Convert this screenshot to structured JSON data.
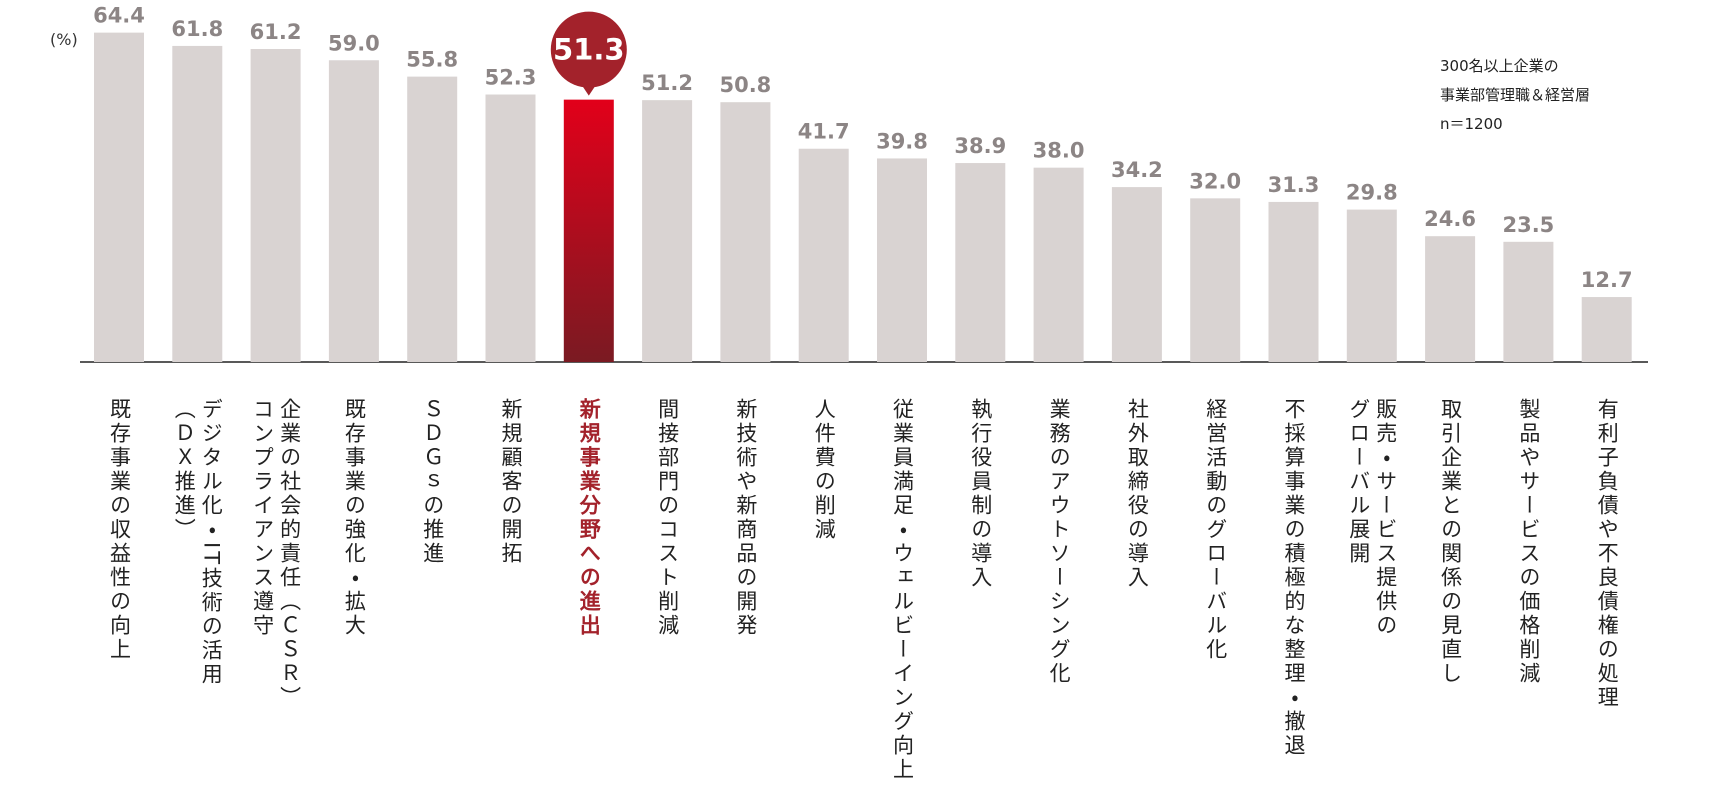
{
  "chart_data": {
    "type": "bar",
    "unit_label": "(%)",
    "note": [
      "300名以上企業の",
      "事業部管理職＆経営層",
      "n＝1200"
    ],
    "categories": [
      "既存事業の収益性の向上",
      "デジタル化・IT技術の活用\n（ＤＸ推進）",
      "企業の社会的責任（ＣＳＲ）\nコンプライアンス遵守",
      "既存事業の強化・拡大",
      "ＳＤＧｓの推進",
      "新規顧客の開拓",
      "新規事業分野への進出",
      "間接部門のコスト削減",
      "新技術や新商品の開発",
      "人件費の削減",
      "従業員満足・ウェルビーイング向上",
      "執行役員制の導入",
      "業務のアウトソーシング化",
      "社外取締役の導入",
      "経営活動のグローバル化",
      "不採算事業の積極的な整理・撤退",
      "販売・サービス提供の\nグローバル展開",
      "取引企業との関係の見直し",
      "製品やサービスの価格削減",
      "有利子負債や不良債権の処理"
    ],
    "values": [
      64.4,
      61.8,
      61.2,
      59.0,
      55.8,
      52.3,
      51.3,
      51.2,
      50.8,
      41.7,
      39.8,
      38.9,
      38.0,
      34.2,
      32.0,
      31.3,
      29.8,
      24.6,
      23.5,
      12.7
    ],
    "value_labels": [
      "64.4",
      "61.8",
      "61.2",
      "59.0",
      "55.8",
      "52.3",
      "51.3",
      "51.2",
      "50.8",
      "41.7",
      "39.8",
      "38.9",
      "38.0",
      "34.2",
      "32.0",
      "31.3",
      "29.8",
      "24.6",
      "23.5",
      "12.7"
    ],
    "color": "#d9d3d2",
    "highlight_index": 6,
    "highlight_color": "#a3222b",
    "ylim": [
      0,
      70
    ]
  }
}
